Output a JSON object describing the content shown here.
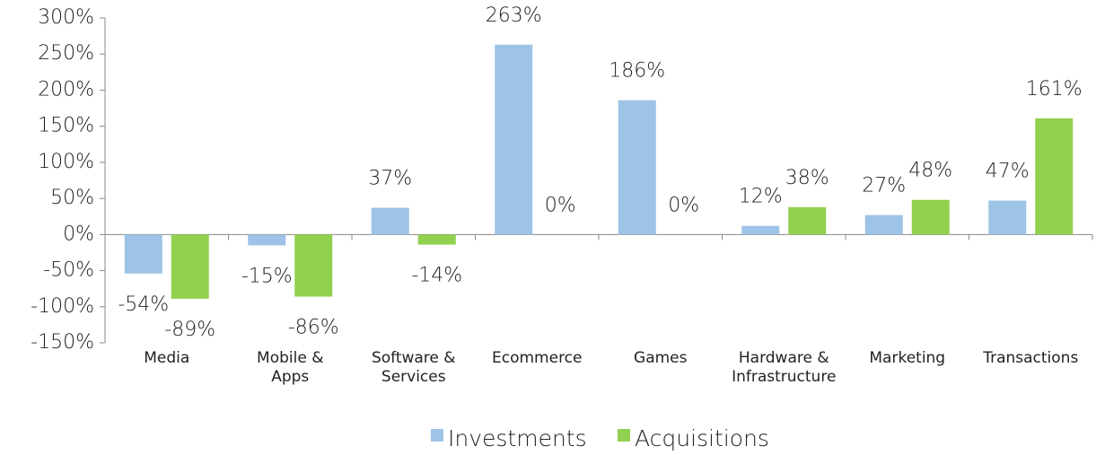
{
  "chart_data": {
    "type": "bar",
    "categories": [
      "Media",
      "Mobile &\nApps",
      "Software &\nServices",
      "Ecommerce",
      "Games",
      "Hardware &\nInfrastructure",
      "Marketing",
      "Transactions"
    ],
    "series": [
      {
        "name": "Investments",
        "color": "#9dc3e6",
        "values": [
          -54,
          -15,
          37,
          263,
          186,
          12,
          27,
          47
        ],
        "value_labels": [
          "-54%",
          "-15%",
          "37%",
          "263%",
          "186%",
          "12%",
          "27%",
          "47%"
        ]
      },
      {
        "name": "Acquisitions",
        "color": "#92d050",
        "values": [
          -89,
          -86,
          -14,
          0,
          0,
          38,
          48,
          161
        ],
        "value_labels": [
          "-89%",
          "-86%",
          "-14%",
          "0%",
          "0%",
          "38%",
          "48%",
          "161%"
        ]
      }
    ],
    "ylim": [
      -150,
      300
    ],
    "yticks": [
      {
        "value": -150,
        "label": "-150%"
      },
      {
        "value": -100,
        "label": "-100%"
      },
      {
        "value": -50,
        "label": "-50%"
      },
      {
        "value": 0,
        "label": "0%"
      },
      {
        "value": 50,
        "label": "50%"
      },
      {
        "value": 100,
        "label": "100%"
      },
      {
        "value": 150,
        "label": "150%"
      },
      {
        "value": 200,
        "label": "200%"
      },
      {
        "value": 250,
        "label": "250%"
      },
      {
        "value": 300,
        "label": "300%"
      }
    ],
    "legend": "bottom"
  }
}
